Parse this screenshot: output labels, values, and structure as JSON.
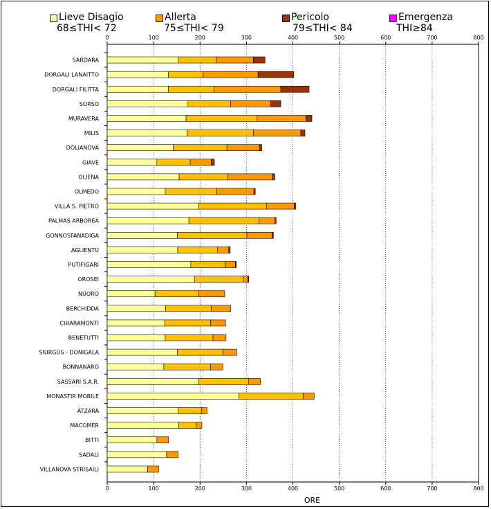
{
  "chart_data": {
    "type": "bar",
    "orientation": "horizontal",
    "stacked": true,
    "xlabel": "ORE",
    "xlim": [
      0,
      800
    ],
    "xticks": [
      "0",
      "100",
      "200",
      "300",
      "400",
      "500",
      "600",
      "700",
      "800"
    ],
    "grid": "vertical dotted",
    "legend_position": "top",
    "categories": [
      "SARDARA",
      "DORGALI LANAITTO",
      "DORGALI FILITTA",
      "SORSO",
      "MURAVERA",
      "MILIS",
      "DOLIANOVA",
      "GIAVE",
      "OLIENA",
      "OLMEDO",
      "VILLA S. PIETRO",
      "PALMAS ARBOREA",
      "GONNOSFANADIGA",
      "AGLIENTU",
      "PUTIFIGARI",
      "OROSEI",
      "NUORO",
      "BERCHIDDA",
      "CHIARAMONTI",
      "BENETUTTI",
      "SIURGUS - DONIGALA",
      "BONNANARO",
      "SASSARI S.A.R.",
      "MONASTIR MOBILE",
      "ATZARA",
      "MACOMER",
      "BITTI",
      "SADALI",
      "VILLANOVA STRISAILI"
    ],
    "series": [
      {
        "name": "Lieve Disagio",
        "range": "68≤THI< 72",
        "color": "#ffff99",
        "values": [
          153,
          132,
          132,
          174,
          170,
          172,
          142,
          107,
          155,
          125,
          197,
          176,
          151,
          152,
          180,
          188,
          103,
          126,
          124,
          125,
          151,
          122,
          197,
          284,
          153,
          154,
          107,
          128,
          87
        ]
      },
      {
        "name": "Allerta",
        "range": "75≤THI< 79",
        "color": "#ffc000",
        "values": [
          82,
          75,
          98,
          92,
          153,
          143,
          116,
          72,
          105,
          111,
          146,
          151,
          150,
          86,
          74,
          105,
          94,
          98,
          99,
          103,
          98,
          101,
          108,
          138,
          50,
          38,
          0,
          0,
          0
        ]
      },
      {
        "name": "Allerta",
        "range": "",
        "color": "#ff9900",
        "values": [
          80,
          118,
          144,
          86,
          105,
          102,
          70,
          45,
          96,
          80,
          60,
          34,
          54,
          24,
          22,
          10,
          56,
          42,
          32,
          28,
          30,
          26,
          25,
          24,
          12,
          12,
          25,
          25,
          24
        ]
      },
      {
        "name": "Pericolo",
        "range": "79≤THI< 84",
        "color": "#993300",
        "values": [
          25,
          77,
          61,
          22,
          13,
          9,
          5,
          7,
          5,
          3,
          3,
          3,
          3,
          3,
          2,
          2,
          0,
          0,
          0,
          0,
          0,
          0,
          0,
          0,
          0,
          0,
          0,
          0,
          0
        ]
      },
      {
        "name": "Emergenza",
        "range": "THI≥84",
        "color": "#ff00ff",
        "values": [
          0,
          0,
          0,
          0,
          0,
          0,
          0,
          0,
          0,
          0,
          0,
          0,
          0,
          0,
          0,
          0,
          0,
          0,
          0,
          0,
          0,
          0,
          0,
          0,
          0,
          0,
          0,
          0,
          0
        ]
      }
    ]
  },
  "legend": [
    {
      "name": "Lieve Disagio",
      "range": "68≤THI< 72",
      "color": "#ffff99"
    },
    {
      "name": "Allerta",
      "range": "75≤THI< 79",
      "color": "#ff9900"
    },
    {
      "name": "Pericolo",
      "range": "79≤THI< 84",
      "color": "#993300"
    },
    {
      "name": "Emergenza",
      "range": "THI≥84",
      "color": "#ff00ff"
    }
  ]
}
